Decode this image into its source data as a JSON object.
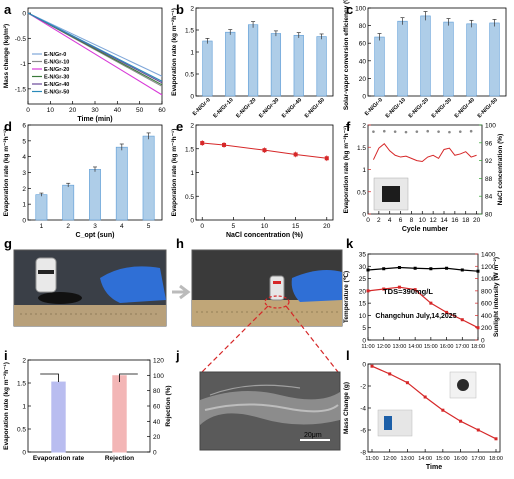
{
  "panels": {
    "a": "a",
    "b": "b",
    "c": "c",
    "d": "d",
    "e": "e",
    "f": "f",
    "g": "g",
    "h": "h",
    "i": "i",
    "j": "j",
    "k": "k",
    "l": "l"
  },
  "colors": {
    "bar_blue": "#aecde8",
    "bar_edge": "#5c9cd6",
    "red": "#d62728",
    "black": "#000000",
    "photo_dark": "#2e3238",
    "glove": "#2f6fd6"
  },
  "chart_data": [
    {
      "panel": "a",
      "type": "line",
      "xlabel": "Time (min)",
      "ylabel": "Mass change (kg/m²)",
      "xlim": [
        0,
        60
      ],
      "ylim": [
        -1.8,
        0.1
      ],
      "xticks": [
        0,
        10,
        20,
        30,
        40,
        50,
        60
      ],
      "yticks": [
        0.0,
        -0.5,
        -1.0,
        -1.5
      ],
      "legend_placement": "bottom-left",
      "series": [
        {
          "name": "E-N/Gr-0",
          "color": "#7fa7d9",
          "x": [
            0,
            60
          ],
          "y": [
            0,
            -1.25
          ]
        },
        {
          "name": "E-N/Gr-10",
          "color": "#8a8a8a",
          "x": [
            0,
            60
          ],
          "y": [
            0,
            -1.45
          ]
        },
        {
          "name": "E-N/Gr-20",
          "color": "#d83ad8",
          "x": [
            0,
            60
          ],
          "y": [
            0,
            -1.62
          ]
        },
        {
          "name": "E-N/Gr-30",
          "color": "#3a7a3a",
          "x": [
            0,
            60
          ],
          "y": [
            0,
            -1.42
          ]
        },
        {
          "name": "E-N/Gr-40",
          "color": "#6a4a9a",
          "x": [
            0,
            60
          ],
          "y": [
            0,
            -1.38
          ]
        },
        {
          "name": "E-N/Gr-50",
          "color": "#2a8aba",
          "x": [
            0,
            60
          ],
          "y": [
            0,
            -1.35
          ]
        }
      ]
    },
    {
      "panel": "b",
      "type": "bar",
      "ylabel": "Evaporation rate (kg m⁻²h⁻¹)",
      "ylim": [
        0,
        2.0
      ],
      "yticks": [
        0.0,
        0.5,
        1.0,
        1.5,
        2.0
      ],
      "categories": [
        "E-N/Gr-0",
        "E-N/Gr-10",
        "E-N/Gr-20",
        "E-N/Gr-30",
        "E-N/Gr-40",
        "E-N/Gr-50"
      ],
      "values": [
        1.25,
        1.45,
        1.62,
        1.42,
        1.38,
        1.35
      ],
      "errors": [
        0.06,
        0.06,
        0.07,
        0.06,
        0.06,
        0.06
      ]
    },
    {
      "panel": "c",
      "type": "bar",
      "ylabel": "Solar-vapor conversion efficiency (%)",
      "ylim": [
        0,
        100
      ],
      "yticks": [
        0,
        20,
        40,
        60,
        80,
        100
      ],
      "categories": [
        "E-N/Gr-0",
        "E-N/Gr-10",
        "E-N/Gr-20",
        "E-N/Gr-30",
        "E-N/Gr-40",
        "E-N/Gr-50"
      ],
      "values": [
        67,
        85,
        91,
        84,
        82,
        83
      ],
      "errors": [
        4,
        4,
        5,
        4,
        4,
        4
      ]
    },
    {
      "panel": "d",
      "type": "bar",
      "xlabel": "C_opt  (sun)",
      "ylabel": "Evaporation rate (kg m⁻²h⁻¹)",
      "ylim": [
        0,
        6
      ],
      "yticks": [
        0,
        1,
        2,
        3,
        4,
        5,
        6
      ],
      "categories": [
        "1",
        "2",
        "3",
        "4",
        "5"
      ],
      "values": [
        1.6,
        2.2,
        3.2,
        4.6,
        5.3
      ],
      "errors": [
        0.1,
        0.12,
        0.15,
        0.2,
        0.2
      ]
    },
    {
      "panel": "e",
      "type": "line",
      "xlabel": "NaCl concentration (%)",
      "ylabel": "Evaporation rate (kg m⁻²h⁻¹)",
      "xlim": [
        -1,
        21
      ],
      "ylim": [
        0,
        2.0
      ],
      "xticks": [
        0,
        5,
        10,
        15,
        20
      ],
      "yticks": [
        0.0,
        0.5,
        1.0,
        1.5,
        2.0
      ],
      "series": [
        {
          "color": "#d62728",
          "x": [
            0,
            3.5,
            10,
            15,
            20
          ],
          "y": [
            1.62,
            1.58,
            1.47,
            1.38,
            1.3
          ],
          "errors": [
            0.06,
            0.06,
            0.06,
            0.06,
            0.06
          ]
        }
      ]
    },
    {
      "panel": "f",
      "type": "line",
      "xlabel": "Cycle number",
      "ylabel": "Evaporation rate (kg m⁻²h⁻¹)",
      "y2label": "NaCl concentration (%)",
      "xlim": [
        0,
        21
      ],
      "ylim": [
        0,
        2.0
      ],
      "y2lim": [
        80,
        100
      ],
      "xticks": [
        0,
        2,
        4,
        6,
        8,
        10,
        12,
        14,
        16,
        18,
        20
      ],
      "yticks": [
        0.0,
        0.5,
        1.0,
        1.5,
        2.0
      ],
      "y2ticks": [
        80,
        84,
        88,
        92,
        96,
        100
      ],
      "series": [
        {
          "axis": "left",
          "color": "#d62728",
          "x": [
            1,
            2,
            3,
            4,
            5,
            6,
            7,
            8,
            9,
            10,
            11,
            12,
            13,
            14,
            15,
            16,
            17,
            18,
            19,
            20
          ],
          "y": [
            1.22,
            1.48,
            1.58,
            1.42,
            1.32,
            1.28,
            1.3,
            1.25,
            1.2,
            1.18,
            1.28,
            1.32,
            1.25,
            1.45,
            1.48,
            1.32,
            1.35,
            1.4,
            1.28,
            1.32
          ]
        },
        {
          "axis": "right",
          "color": "#888888",
          "marker_only": true,
          "x": [
            1,
            3,
            5,
            7,
            9,
            11,
            13,
            15,
            17,
            19
          ],
          "y": [
            98.5,
            98.6,
            98.5,
            98.4,
            98.5,
            98.6,
            98.5,
            98.4,
            98.5,
            98.6
          ]
        }
      ]
    },
    {
      "panel": "i",
      "type": "bar",
      "ylabel": "Evaporation rate (kg m⁻²h⁻¹)",
      "y2label": "Rejection (%)",
      "ylim": [
        0,
        2.0
      ],
      "y2lim": [
        0,
        120
      ],
      "yticks": [
        0.0,
        0.5,
        1.0,
        1.5,
        2.0
      ],
      "y2ticks": [
        0,
        20,
        40,
        60,
        80,
        100,
        120
      ],
      "categories": [
        "Evaporation rate",
        "Rejection"
      ],
      "values": [
        1.52,
        99.5
      ],
      "axis": [
        "left",
        "right"
      ],
      "colors": [
        "#b9bdf0",
        "#f3b6b6"
      ]
    },
    {
      "panel": "k",
      "type": "line",
      "xlabel": "",
      "ylabel": "Temperature (℃)",
      "y2label": "Sunlight intensity (W m⁻²)",
      "x": [
        "11:00",
        "12:00",
        "13:00",
        "14:00",
        "15:00",
        "16:00",
        "17:00",
        "18:00"
      ],
      "ylim": [
        0,
        35
      ],
      "y2lim": [
        0,
        1400
      ],
      "yticks": [
        0,
        5,
        10,
        15,
        20,
        25,
        30,
        35
      ],
      "y2ticks": [
        0,
        200,
        400,
        600,
        800,
        1000,
        1200,
        1400
      ],
      "annotations": [
        "TDS=390mg/L",
        "Changchun July,14,2025"
      ],
      "series": [
        {
          "axis": "left",
          "color": "#000000",
          "y": [
            28.5,
            29.0,
            29.5,
            29.2,
            29.0,
            29.2,
            28.5,
            28.0
          ]
        },
        {
          "axis": "right",
          "color": "#d62728",
          "y": [
            800,
            830,
            860,
            820,
            600,
            450,
            330,
            200
          ]
        }
      ]
    },
    {
      "panel": "l",
      "type": "line",
      "xlabel": "Time",
      "ylabel": "Mass Change (g)",
      "x": [
        "11:00",
        "12:00",
        "13:00",
        "14:00",
        "15:00",
        "16:00",
        "17:00",
        "18:00"
      ],
      "ylim": [
        -8,
        0
      ],
      "yticks": [
        0,
        -2,
        -4,
        -6,
        -8
      ],
      "series": [
        {
          "color": "#d62728",
          "y": [
            -0.2,
            -0.9,
            -1.7,
            -3.0,
            -4.2,
            -5.2,
            -6.0,
            -6.8
          ]
        }
      ]
    }
  ],
  "photos": {
    "j_scalebar": "20μm"
  }
}
